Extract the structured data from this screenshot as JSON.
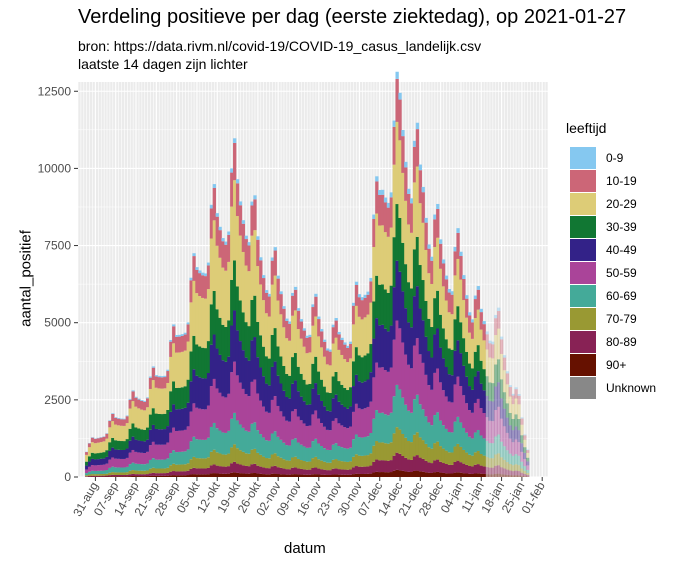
{
  "title": "Verdeling positieve per dag (eerste ziektedag), op 2021-01-27",
  "subtitle_lines": [
    "bron: https://data.rivm.nl/covid-19/COVID-19_casus_landelijk.csv",
    "laatste 14 dagen zijn lichter"
  ],
  "chart_data": {
    "type": "area",
    "stacked": true,
    "xlabel": "datum",
    "ylabel": "aantal_positief",
    "ylim": [
      0,
      12800
    ],
    "yticks": [
      0,
      2500,
      5000,
      7500,
      10000,
      12500
    ],
    "ytick_labels": [
      "0",
      "2500",
      "5000",
      "7500",
      "10000",
      "12500"
    ],
    "x_start": "2020-08-28",
    "x_end": "2021-01-27",
    "x_range": [
      "2020-08-25",
      "2021-02-03"
    ],
    "lighter_from": "2021-01-13",
    "xticks": [
      "2020-08-31",
      "2020-09-07",
      "2020-09-14",
      "2020-09-21",
      "2020-09-28",
      "2020-10-05",
      "2020-10-12",
      "2020-10-19",
      "2020-10-26",
      "2020-11-02",
      "2020-11-09",
      "2020-11-16",
      "2020-11-23",
      "2020-11-30",
      "2020-12-07",
      "2020-12-14",
      "2020-12-21",
      "2020-12-28",
      "2021-01-04",
      "2021-01-11",
      "2021-01-18",
      "2021-01-25",
      "2021-02-01"
    ],
    "xtick_labels": [
      "31-aug",
      "07-sep",
      "14-sep",
      "21-sep",
      "28-sep",
      "05-okt",
      "12-okt",
      "19-okt",
      "26-okt",
      "02-nov",
      "09-nov",
      "16-nov",
      "23-nov",
      "30-nov",
      "07-dec",
      "14-dec",
      "21-dec",
      "28-dec",
      "04-jan",
      "11-jan",
      "18-jan",
      "25-jan",
      "01-feb"
    ],
    "grid": true,
    "legend": {
      "title": "leeftijd",
      "position": "right",
      "entries": [
        "0-9",
        "10-19",
        "20-29",
        "30-39",
        "40-49",
        "50-59",
        "60-69",
        "70-79",
        "80-89",
        "90+",
        "Unknown"
      ]
    },
    "series_colors": [
      "#85C8F0",
      "#CC6677",
      "#DDCC77",
      "#117733",
      "#332288",
      "#AA4499",
      "#44AA99",
      "#999933",
      "#882255",
      "#661100",
      "#888888"
    ],
    "stack_order": "Unknown bottom, then 90+ ... up to 0-9 on top",
    "total_anchors": [
      [
        "2020-08-28",
        950
      ],
      [
        "2020-09-05",
        1750
      ],
      [
        "2020-09-14",
        2600
      ],
      [
        "2020-09-21",
        3300
      ],
      [
        "2020-09-28",
        4600
      ],
      [
        "2020-10-01",
        5500
      ],
      [
        "2020-10-05",
        6800
      ],
      [
        "2020-10-10",
        8400
      ],
      [
        "2020-10-14",
        8700
      ],
      [
        "2020-10-18",
        9800
      ],
      [
        "2020-10-22",
        9200
      ],
      [
        "2020-10-26",
        7800
      ],
      [
        "2020-10-30",
        6900
      ],
      [
        "2020-11-03",
        6400
      ],
      [
        "2020-11-08",
        5500
      ],
      [
        "2020-11-15",
        5300
      ],
      [
        "2020-11-22",
        4600
      ],
      [
        "2020-11-27",
        5100
      ],
      [
        "2020-12-01",
        6200
      ],
      [
        "2020-12-04",
        7500
      ],
      [
        "2020-12-08",
        9900
      ],
      [
        "2020-12-12",
        11000
      ],
      [
        "2020-12-14",
        12450
      ],
      [
        "2020-12-18",
        10500
      ],
      [
        "2020-12-22",
        10000
      ],
      [
        "2020-12-25",
        8300
      ],
      [
        "2020-12-29",
        7500
      ],
      [
        "2021-01-01",
        7000
      ],
      [
        "2021-01-04",
        7300
      ],
      [
        "2021-01-09",
        5600
      ],
      [
        "2021-01-13",
        5300
      ],
      [
        "2021-01-17",
        4900
      ],
      [
        "2021-01-21",
        3500
      ],
      [
        "2021-01-24",
        2400
      ],
      [
        "2021-01-27",
        1000
      ]
    ],
    "weekly_pattern": [
      1.0,
      0.94,
      0.89,
      0.85,
      0.86,
      1.05,
      1.12
    ],
    "age_shares": {
      "0-9": [
        0.01,
        0.02
      ],
      "10-19": [
        0.11,
        0.1
      ],
      "20-29": [
        0.26,
        0.17
      ],
      "30-39": [
        0.15,
        0.13
      ],
      "40-49": [
        0.15,
        0.14
      ],
      "50-59": [
        0.14,
        0.16
      ],
      "60-69": [
        0.08,
        0.11
      ],
      "70-79": [
        0.04,
        0.07
      ],
      "80-89": [
        0.02,
        0.05
      ],
      "90+": [
        0.01,
        0.02
      ],
      "Unknown": [
        0.0,
        0.0
      ]
    }
  }
}
